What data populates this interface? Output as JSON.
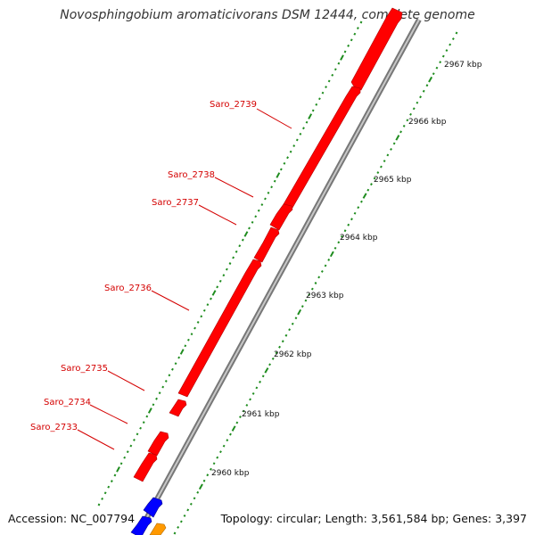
{
  "title": "Novosphingobium aromaticivorans DSM 12444, complete genome",
  "accession": "Accession: NC_007794",
  "topology": "Topology: circular; Length: 3,561,584 bp; Genes: 3,397",
  "genes": [
    {
      "label": "Saro_2739",
      "color": "#ff0000"
    },
    {
      "label": "Saro_2738",
      "color": "#ff0000"
    },
    {
      "label": "Saro_2737",
      "color": "#ff0000"
    },
    {
      "label": "Saro_2736",
      "color": "#ff0000"
    },
    {
      "label": "Saro_2735",
      "color": "#ff0000"
    },
    {
      "label": "Saro_2734",
      "color": "#ff0000"
    },
    {
      "label": "Saro_2733",
      "color": "#ff0000"
    }
  ],
  "scale_labels": [
    "2967 kbp",
    "2966 kbp",
    "2965 kbp",
    "2964 kbp",
    "2963 kbp",
    "2962 kbp",
    "2961 kbp",
    "2960 kbp"
  ],
  "colors": {
    "gene": "#ff0000",
    "gene_shadow": "#8c0000",
    "backbone": "#999999",
    "tick": "#1e8c1e",
    "label": "#d40000",
    "other_gene_blue": "#0000ff",
    "other_gene_orange": "#ff9900"
  }
}
